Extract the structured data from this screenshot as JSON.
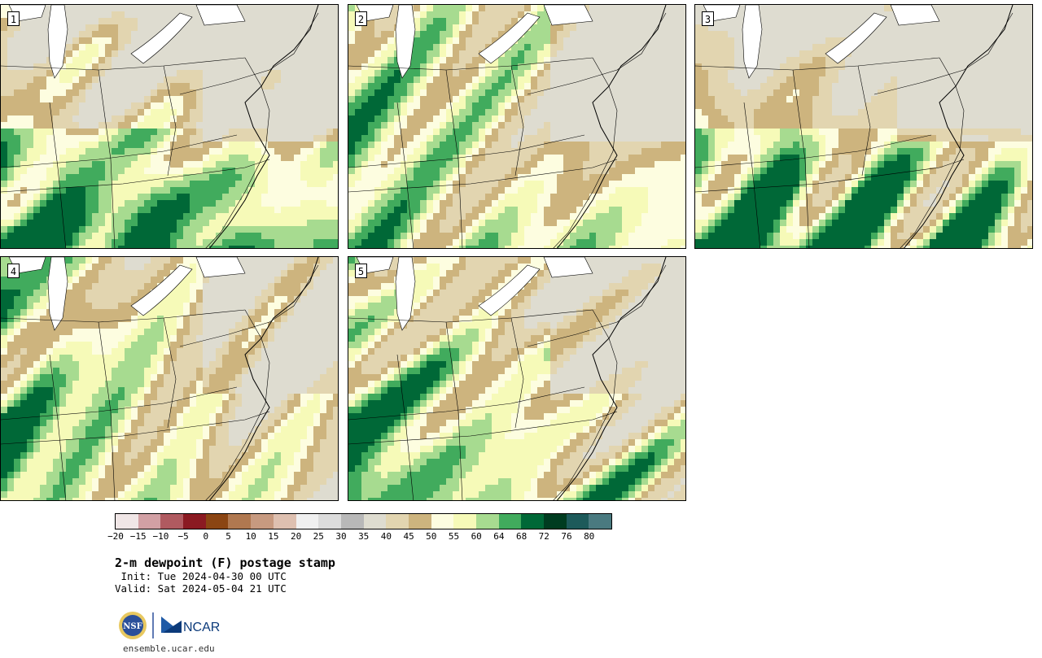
{
  "panels": [
    {
      "label": "1",
      "variant": 1
    },
    {
      "label": "2",
      "variant": 2
    },
    {
      "label": "3",
      "variant": 3
    },
    {
      "label": "4",
      "variant": 4
    },
    {
      "label": "5",
      "variant": 5
    }
  ],
  "colorbar": {
    "colors": [
      "#f0e6e6",
      "#d2a0a4",
      "#b05a60",
      "#8b1a22",
      "#8b4513",
      "#b07850",
      "#c79a80",
      "#dec0b0",
      "#f0f0f0",
      "#dcdcdc",
      "#b8b8b8",
      "#dedcd0",
      "#e2d5b0",
      "#cdb47e",
      "#fdfde0",
      "#f6fab8",
      "#a7db90",
      "#41ab5d",
      "#006837",
      "#003c20",
      "#1d5a5a",
      "#4a7a80"
    ],
    "tick_labels": [
      "−20",
      "−15",
      "−10",
      "−5",
      "0",
      "5",
      "10",
      "15",
      "20",
      "25",
      "30",
      "35",
      "40",
      "45",
      "50",
      "55",
      "60",
      "64",
      "68",
      "72",
      "76",
      "80"
    ]
  },
  "title": "2-m dewpoint (F) postage stamp",
  "init_text": " Init: Tue 2024-04-30 00 UTC",
  "valid_text": "Valid: Sat 2024-05-04 21 UTC",
  "logos": {
    "nsf": "NSF",
    "ncar": "NCAR"
  },
  "site": "ensemble.ucar.edu"
}
